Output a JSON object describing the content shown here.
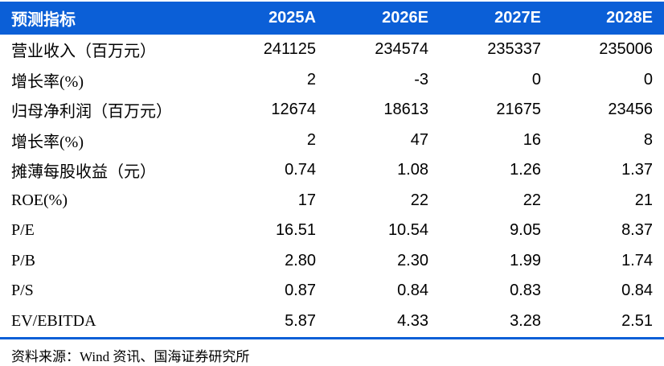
{
  "chart_data": {
    "type": "table",
    "header_label": "预测指标",
    "columns": [
      "2025A",
      "2026E",
      "2027E",
      "2028E"
    ],
    "rows": [
      {
        "label": "营业收入（百万元）",
        "values": [
          "241125",
          "234574",
          "235337",
          "235006"
        ]
      },
      {
        "label": "增长率(%)",
        "values": [
          "2",
          "-3",
          "0",
          "0"
        ]
      },
      {
        "label": "归母净利润（百万元）",
        "values": [
          "12674",
          "18613",
          "21675",
          "23456"
        ]
      },
      {
        "label": "增长率(%)",
        "values": [
          "2",
          "47",
          "16",
          "8"
        ]
      },
      {
        "label": "摊薄每股收益（元）",
        "values": [
          "0.74",
          "1.08",
          "1.26",
          "1.37"
        ]
      },
      {
        "label": "ROE(%)",
        "values": [
          "17",
          "22",
          "22",
          "21"
        ]
      },
      {
        "label": "P/E",
        "values": [
          "16.51",
          "10.54",
          "9.05",
          "8.37"
        ]
      },
      {
        "label": "P/B",
        "values": [
          "2.80",
          "2.30",
          "1.99",
          "1.74"
        ]
      },
      {
        "label": "P/S",
        "values": [
          "0.87",
          "0.84",
          "0.83",
          "0.84"
        ]
      },
      {
        "label": "EV/EBITDA",
        "values": [
          "5.87",
          "4.33",
          "3.28",
          "2.51"
        ]
      }
    ]
  },
  "footer": {
    "source": "资料来源：Wind 资讯、国海证券研究所"
  },
  "colors": {
    "header_bg": "#0B5FD7",
    "header_text": "#FFFFFF",
    "body_text": "#000000",
    "divider": "#0B5FD7",
    "background": "#FFFFFF"
  }
}
